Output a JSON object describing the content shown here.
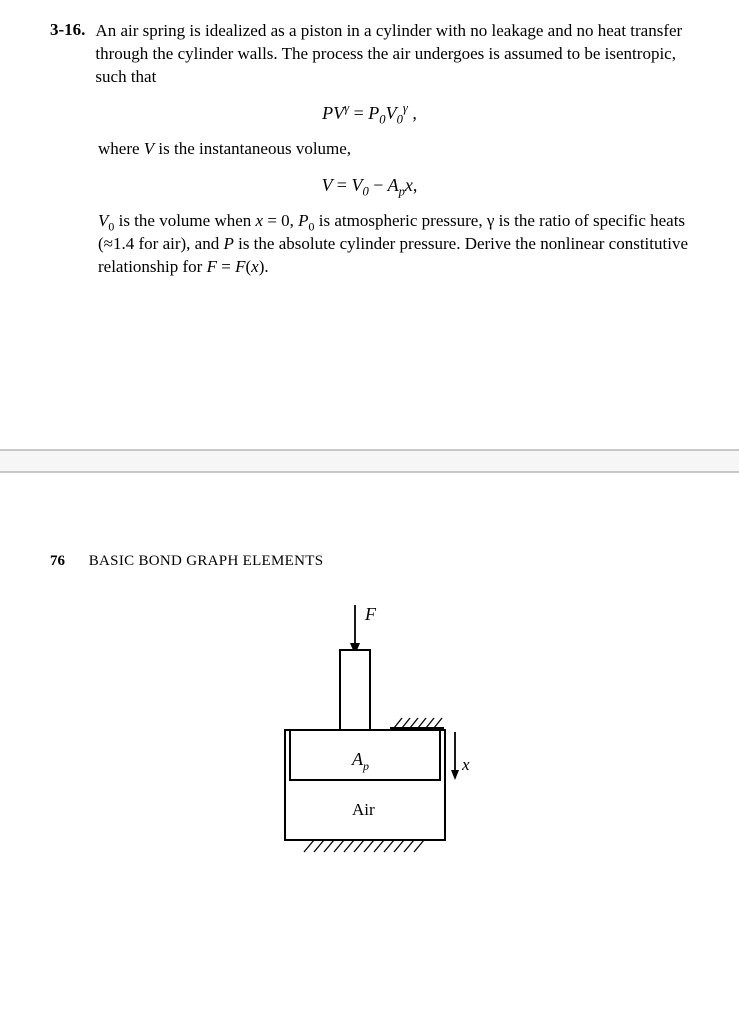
{
  "problem": {
    "number": "3-16.",
    "para1": "An air spring is idealized as a piston in a cylinder with no leakage and no heat transfer through the cylinder walls. The process the air undergoes is assumed to be isentropic, such that",
    "eq1_html": "<span class='it'>PV</span><sup>&gamma;</sup> <span class='rm'>=</span> <span class='it'>P</span><sub>0</sub><span class='it'>V</span><sub>0</sub><sup>&gamma;</sup> <span class='rm'>,</span>",
    "para2": "where <i>V</i> is the instantaneous volume,",
    "eq2_html": "<span class='it'>V</span> <span class='rm'>=</span> <span class='it'>V</span><sub>0</sub> <span class='rm'>&minus;</span> <span class='it'>A<sub>p</sub>x</span><span class='rm'>,</span>",
    "para3_html": "<i>V</i><sub>0</sub> is the volume when <i>x</i> = 0, <i>P</i><sub>0</sub> is atmospheric pressure, &gamma; is the ratio of specific heats (&asymp;1.4 for air), and <i>P</i> is the absolute cylinder pressure. Derive the nonlinear constitutive relationship for <i>F</i> = <i>F</i>(<i>x</i>)."
  },
  "header": {
    "page_number": "76",
    "section_title": "BASIC BOND GRAPH ELEMENTS"
  },
  "figure": {
    "force_label": "F",
    "area_label_html": "A<tspan baseline-shift='-4' font-size='11'>p</tspan>",
    "air_label": "Air",
    "x_label": "x",
    "colors": {
      "stroke": "#000000",
      "fill": "#ffffff"
    }
  }
}
